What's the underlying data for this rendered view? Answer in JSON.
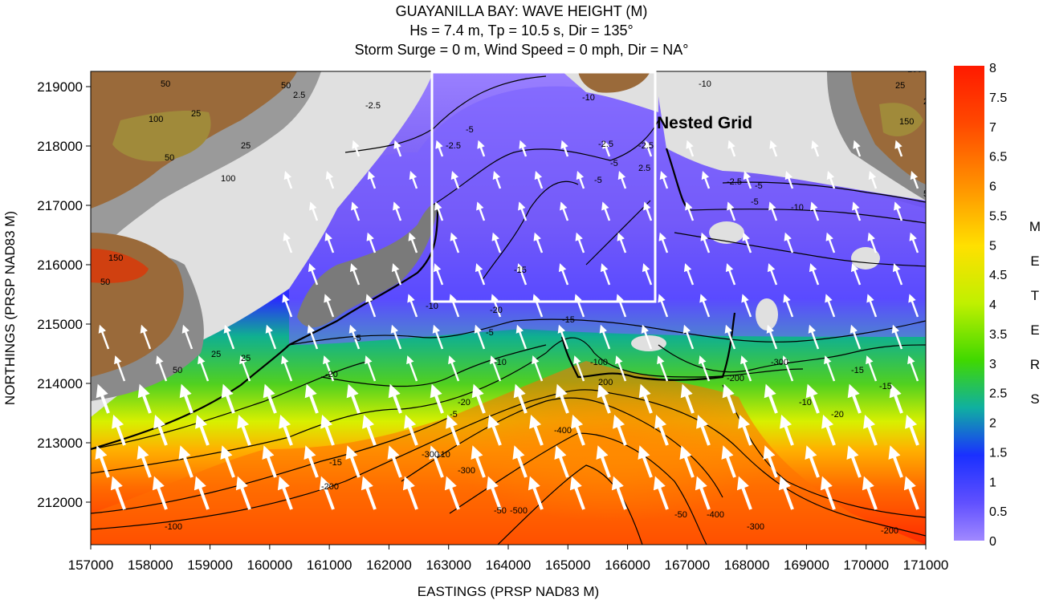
{
  "title": {
    "line1": "GUAYANILLA BAY: WAVE HEIGHT (M)",
    "line2": "Hs = 7.4 m, Tp = 10.5 s, Dir = 135°",
    "line3": "Storm Surge = 0 m, Wind Speed = 0 mph, Dir = NA°"
  },
  "axes": {
    "x_label": "EASTINGS (PRSP NAD83 M)",
    "y_label": "NORTHINGS (PRSP NAD83 M)",
    "x_ticks": [
      "157000",
      "158000",
      "159000",
      "160000",
      "161000",
      "162000",
      "163000",
      "164000",
      "165000",
      "166000",
      "167000",
      "168000",
      "169000",
      "170000",
      "171000"
    ],
    "y_ticks": [
      "219000",
      "218000",
      "217000",
      "216000",
      "215000",
      "214000",
      "213000",
      "212000"
    ]
  },
  "nested_grid": {
    "label": "Nested Grid"
  },
  "colorbar": {
    "labels": [
      "8",
      "7.5",
      "7",
      "6.5",
      "6",
      "5.5",
      "5",
      "4.5",
      "4",
      "3.5",
      "3",
      "2.5",
      "2",
      "1.5",
      "1",
      "0.5",
      "0"
    ],
    "unit_letters": [
      "M",
      "E",
      "T",
      "E",
      "R",
      "S"
    ],
    "colors": [
      "#ff2000",
      "#ff3a00",
      "#ff5a00",
      "#ff8a00",
      "#ffb000",
      "#ffd800",
      "#ffff00",
      "#d8f000",
      "#a0ea00",
      "#60e000",
      "#20d020",
      "#10b080",
      "#1050e0",
      "#2020ff",
      "#4040ff",
      "#7a60ff",
      "#9a80ff"
    ]
  },
  "contour_labels": [
    "50",
    "100",
    "25",
    "50",
    "100",
    "2.5",
    "-2.5",
    "-10",
    "50",
    "25",
    "150",
    "25",
    "50",
    "100",
    "25",
    "150",
    "50",
    "-2.5",
    "-5",
    "-2.5",
    "-5",
    "-10",
    "-5",
    "-2.5",
    "-10",
    "-5",
    "2.5",
    "-2.5",
    "-5",
    "-15",
    "-20",
    "-10",
    "-5",
    "-15",
    "25",
    "50",
    "25",
    "-5",
    "-10",
    "-20",
    "-15",
    "-100",
    "200",
    "-300",
    "-50",
    "-200",
    "-300",
    "-400",
    "-500",
    "-50",
    "-400",
    "-300",
    "-200",
    "-100",
    "-200",
    "-300",
    "-15",
    "-20",
    "-10",
    "-5",
    "-10",
    "-20",
    "-15"
  ]
}
